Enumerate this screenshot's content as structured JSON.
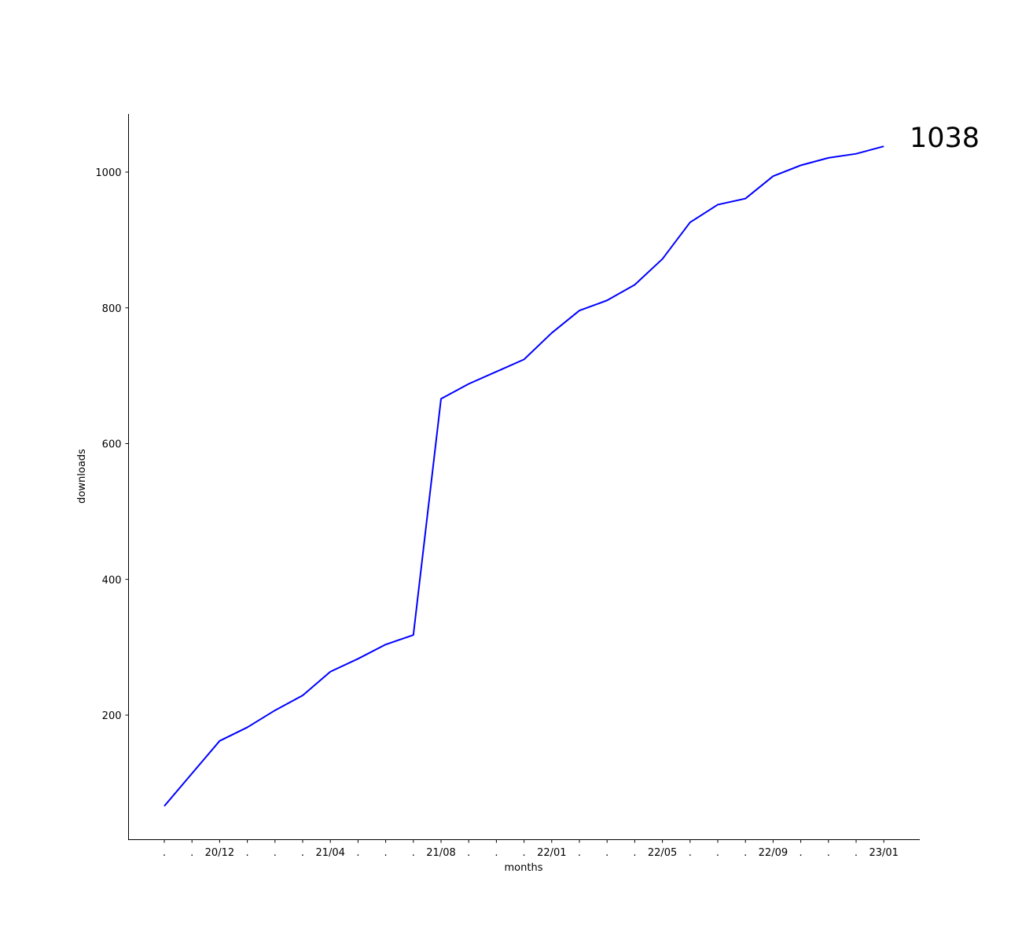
{
  "chart_data": {
    "type": "line",
    "title": "",
    "xlabel": "months",
    "ylabel": "downloads",
    "categories": [
      ".",
      ".",
      "20/12",
      ".",
      ".",
      ".",
      "21/04",
      ".",
      ".",
      ".",
      "21/08",
      ".",
      ".",
      ".",
      "22/01",
      ".",
      ".",
      ".",
      "22/05",
      ".",
      ".",
      ".",
      "22/09",
      ".",
      ".",
      ".",
      "23/01"
    ],
    "series": [
      {
        "color": "#0000ff",
        "values": [
          66,
          114,
          162,
          182,
          207,
          229,
          264,
          283,
          304,
          318,
          666,
          688,
          706,
          724,
          763,
          796,
          811,
          834,
          872,
          926,
          952,
          961,
          994,
          1010,
          1021,
          1027,
          1038
        ]
      }
    ],
    "ylim": [
      28,
      1088
    ],
    "yticks": [
      200,
      400,
      600,
      800,
      1000
    ],
    "grid": false,
    "end_annotation": "1038",
    "spines": "left-bottom"
  }
}
